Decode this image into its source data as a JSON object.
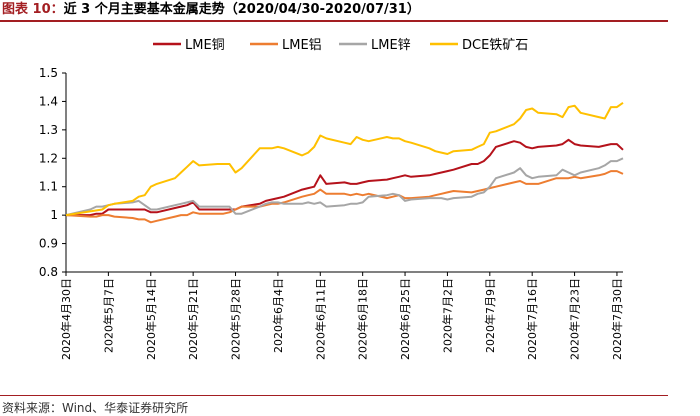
{
  "figure": {
    "label": "图表 10：",
    "title": "近 3 个月主要基本金属走势（2020/04/30-2020/07/31）",
    "source": "资料来源：Wind、华泰证券研究所"
  },
  "chart_data": {
    "type": "line",
    "ylim": [
      0.8,
      1.5
    ],
    "yticks": [
      "0.8",
      "0.9",
      "1",
      "1.1",
      "1.2",
      "1.3",
      "1.4",
      "1.5"
    ],
    "x_start": "2020-04-30",
    "x_end": "2020-07-31",
    "xtick_labels": [
      "2020年4月30日",
      "2020年5月7日",
      "2020年5月14日",
      "2020年5月21日",
      "2020年5月28日",
      "2020年6月4日",
      "2020年6月11日",
      "2020年6月18日",
      "2020年6月25日",
      "2020年7月2日",
      "2020年7月9日",
      "2020年7月16日",
      "2020年7月23日",
      "2020年7月30日"
    ],
    "legend_position": "top-center",
    "grid": false,
    "series": [
      {
        "name": "LME铜",
        "color": "#b5121b",
        "points": [
          [
            "2020-04-30",
            1.0
          ],
          [
            "2020-05-04",
            1.0
          ],
          [
            "2020-05-05",
            1.005
          ],
          [
            "2020-05-06",
            1.005
          ],
          [
            "2020-05-07",
            1.02
          ],
          [
            "2020-05-08",
            1.02
          ],
          [
            "2020-05-11",
            1.02
          ],
          [
            "2020-05-12",
            1.02
          ],
          [
            "2020-05-13",
            1.02
          ],
          [
            "2020-05-14",
            1.01
          ],
          [
            "2020-05-15",
            1.01
          ],
          [
            "2020-05-18",
            1.025
          ],
          [
            "2020-05-19",
            1.03
          ],
          [
            "2020-05-20",
            1.035
          ],
          [
            "2020-05-21",
            1.045
          ],
          [
            "2020-05-22",
            1.02
          ],
          [
            "2020-05-26",
            1.02
          ],
          [
            "2020-05-27",
            1.02
          ],
          [
            "2020-05-28",
            1.02
          ],
          [
            "2020-05-29",
            1.03
          ],
          [
            "2020-06-01",
            1.04
          ],
          [
            "2020-06-02",
            1.05
          ],
          [
            "2020-06-03",
            1.055
          ],
          [
            "2020-06-04",
            1.06
          ],
          [
            "2020-06-05",
            1.065
          ],
          [
            "2020-06-08",
            1.09
          ],
          [
            "2020-06-09",
            1.095
          ],
          [
            "2020-06-10",
            1.1
          ],
          [
            "2020-06-11",
            1.14
          ],
          [
            "2020-06-12",
            1.11
          ],
          [
            "2020-06-15",
            1.115
          ],
          [
            "2020-06-16",
            1.11
          ],
          [
            "2020-06-17",
            1.11
          ],
          [
            "2020-06-18",
            1.115
          ],
          [
            "2020-06-19",
            1.12
          ],
          [
            "2020-06-22",
            1.125
          ],
          [
            "2020-06-23",
            1.13
          ],
          [
            "2020-06-24",
            1.135
          ],
          [
            "2020-06-25",
            1.14
          ],
          [
            "2020-06-26",
            1.135
          ],
          [
            "2020-06-29",
            1.14
          ],
          [
            "2020-06-30",
            1.145
          ],
          [
            "2020-07-01",
            1.15
          ],
          [
            "2020-07-02",
            1.155
          ],
          [
            "2020-07-03",
            1.16
          ],
          [
            "2020-07-06",
            1.18
          ],
          [
            "2020-07-07",
            1.18
          ],
          [
            "2020-07-08",
            1.19
          ],
          [
            "2020-07-09",
            1.21
          ],
          [
            "2020-07-10",
            1.24
          ],
          [
            "2020-07-13",
            1.26
          ],
          [
            "2020-07-14",
            1.255
          ],
          [
            "2020-07-15",
            1.24
          ],
          [
            "2020-07-16",
            1.235
          ],
          [
            "2020-07-17",
            1.24
          ],
          [
            "2020-07-20",
            1.245
          ],
          [
            "2020-07-21",
            1.25
          ],
          [
            "2020-07-22",
            1.265
          ],
          [
            "2020-07-23",
            1.25
          ],
          [
            "2020-07-24",
            1.245
          ],
          [
            "2020-07-27",
            1.24
          ],
          [
            "2020-07-28",
            1.245
          ],
          [
            "2020-07-29",
            1.25
          ],
          [
            "2020-07-30",
            1.25
          ],
          [
            "2020-07-31",
            1.23
          ]
        ]
      },
      {
        "name": "LME铝",
        "color": "#ed7d31",
        "points": [
          [
            "2020-04-30",
            1.0
          ],
          [
            "2020-05-04",
            0.995
          ],
          [
            "2020-05-05",
            0.995
          ],
          [
            "2020-05-06",
            1.0
          ],
          [
            "2020-05-07",
            1.0
          ],
          [
            "2020-05-08",
            0.995
          ],
          [
            "2020-05-11",
            0.99
          ],
          [
            "2020-05-12",
            0.985
          ],
          [
            "2020-05-13",
            0.985
          ],
          [
            "2020-05-14",
            0.975
          ],
          [
            "2020-05-15",
            0.98
          ],
          [
            "2020-05-18",
            0.995
          ],
          [
            "2020-05-19",
            1.0
          ],
          [
            "2020-05-20",
            1.0
          ],
          [
            "2020-05-21",
            1.01
          ],
          [
            "2020-05-22",
            1.005
          ],
          [
            "2020-05-26",
            1.005
          ],
          [
            "2020-05-27",
            1.01
          ],
          [
            "2020-05-28",
            1.02
          ],
          [
            "2020-05-29",
            1.03
          ],
          [
            "2020-06-01",
            1.03
          ],
          [
            "2020-06-02",
            1.035
          ],
          [
            "2020-06-03",
            1.04
          ],
          [
            "2020-06-04",
            1.04
          ],
          [
            "2020-06-05",
            1.045
          ],
          [
            "2020-06-08",
            1.065
          ],
          [
            "2020-06-09",
            1.07
          ],
          [
            "2020-06-10",
            1.075
          ],
          [
            "2020-06-11",
            1.09
          ],
          [
            "2020-06-12",
            1.075
          ],
          [
            "2020-06-15",
            1.075
          ],
          [
            "2020-06-16",
            1.07
          ],
          [
            "2020-06-17",
            1.075
          ],
          [
            "2020-06-18",
            1.07
          ],
          [
            "2020-06-19",
            1.075
          ],
          [
            "2020-06-22",
            1.06
          ],
          [
            "2020-06-23",
            1.065
          ],
          [
            "2020-06-24",
            1.07
          ],
          [
            "2020-06-25",
            1.06
          ],
          [
            "2020-06-26",
            1.06
          ],
          [
            "2020-06-29",
            1.065
          ],
          [
            "2020-06-30",
            1.07
          ],
          [
            "2020-07-01",
            1.075
          ],
          [
            "2020-07-02",
            1.08
          ],
          [
            "2020-07-03",
            1.085
          ],
          [
            "2020-07-06",
            1.08
          ],
          [
            "2020-07-07",
            1.085
          ],
          [
            "2020-07-08",
            1.09
          ],
          [
            "2020-07-09",
            1.095
          ],
          [
            "2020-07-10",
            1.1
          ],
          [
            "2020-07-13",
            1.115
          ],
          [
            "2020-07-14",
            1.12
          ],
          [
            "2020-07-15",
            1.11
          ],
          [
            "2020-07-16",
            1.11
          ],
          [
            "2020-07-17",
            1.11
          ],
          [
            "2020-07-20",
            1.13
          ],
          [
            "2020-07-21",
            1.13
          ],
          [
            "2020-07-22",
            1.13
          ],
          [
            "2020-07-23",
            1.135
          ],
          [
            "2020-07-24",
            1.13
          ],
          [
            "2020-07-27",
            1.14
          ],
          [
            "2020-07-28",
            1.145
          ],
          [
            "2020-07-29",
            1.155
          ],
          [
            "2020-07-30",
            1.155
          ],
          [
            "2020-07-31",
            1.145
          ]
        ]
      },
      {
        "name": "LME锌",
        "color": "#a6a6a6",
        "points": [
          [
            "2020-04-30",
            1.0
          ],
          [
            "2020-05-04",
            1.02
          ],
          [
            "2020-05-05",
            1.03
          ],
          [
            "2020-05-06",
            1.03
          ],
          [
            "2020-05-07",
            1.035
          ],
          [
            "2020-05-08",
            1.04
          ],
          [
            "2020-05-11",
            1.045
          ],
          [
            "2020-05-12",
            1.05
          ],
          [
            "2020-05-13",
            1.035
          ],
          [
            "2020-05-14",
            1.02
          ],
          [
            "2020-05-15",
            1.02
          ],
          [
            "2020-05-18",
            1.035
          ],
          [
            "2020-05-19",
            1.04
          ],
          [
            "2020-05-20",
            1.045
          ],
          [
            "2020-05-21",
            1.05
          ],
          [
            "2020-05-22",
            1.03
          ],
          [
            "2020-05-26",
            1.03
          ],
          [
            "2020-05-27",
            1.03
          ],
          [
            "2020-05-28",
            1.005
          ],
          [
            "2020-05-29",
            1.005
          ],
          [
            "2020-06-01",
            1.03
          ],
          [
            "2020-06-02",
            1.04
          ],
          [
            "2020-06-03",
            1.045
          ],
          [
            "2020-06-04",
            1.045
          ],
          [
            "2020-06-05",
            1.04
          ],
          [
            "2020-06-08",
            1.04
          ],
          [
            "2020-06-09",
            1.045
          ],
          [
            "2020-06-10",
            1.04
          ],
          [
            "2020-06-11",
            1.045
          ],
          [
            "2020-06-12",
            1.03
          ],
          [
            "2020-06-15",
            1.035
          ],
          [
            "2020-06-16",
            1.04
          ],
          [
            "2020-06-17",
            1.04
          ],
          [
            "2020-06-18",
            1.045
          ],
          [
            "2020-06-19",
            1.065
          ],
          [
            "2020-06-22",
            1.07
          ],
          [
            "2020-06-23",
            1.075
          ],
          [
            "2020-06-24",
            1.07
          ],
          [
            "2020-06-25",
            1.05
          ],
          [
            "2020-06-26",
            1.055
          ],
          [
            "2020-06-29",
            1.06
          ],
          [
            "2020-06-30",
            1.06
          ],
          [
            "2020-07-01",
            1.06
          ],
          [
            "2020-07-02",
            1.055
          ],
          [
            "2020-07-03",
            1.06
          ],
          [
            "2020-07-06",
            1.065
          ],
          [
            "2020-07-07",
            1.075
          ],
          [
            "2020-07-08",
            1.08
          ],
          [
            "2020-07-09",
            1.1
          ],
          [
            "2020-07-10",
            1.13
          ],
          [
            "2020-07-13",
            1.15
          ],
          [
            "2020-07-14",
            1.165
          ],
          [
            "2020-07-15",
            1.14
          ],
          [
            "2020-07-16",
            1.13
          ],
          [
            "2020-07-17",
            1.135
          ],
          [
            "2020-07-20",
            1.14
          ],
          [
            "2020-07-21",
            1.16
          ],
          [
            "2020-07-22",
            1.15
          ],
          [
            "2020-07-23",
            1.14
          ],
          [
            "2020-07-24",
            1.15
          ],
          [
            "2020-07-27",
            1.165
          ],
          [
            "2020-07-28",
            1.175
          ],
          [
            "2020-07-29",
            1.19
          ],
          [
            "2020-07-30",
            1.19
          ],
          [
            "2020-07-31",
            1.2
          ]
        ]
      },
      {
        "name": "DCE铁矿石",
        "color": "#ffc000",
        "points": [
          [
            "2020-04-30",
            1.0
          ],
          [
            "2020-05-06",
            1.02
          ],
          [
            "2020-05-07",
            1.035
          ],
          [
            "2020-05-08",
            1.04
          ],
          [
            "2020-05-11",
            1.05
          ],
          [
            "2020-05-12",
            1.065
          ],
          [
            "2020-05-13",
            1.07
          ],
          [
            "2020-05-14",
            1.1
          ],
          [
            "2020-05-15",
            1.11
          ],
          [
            "2020-05-18",
            1.13
          ],
          [
            "2020-05-19",
            1.15
          ],
          [
            "2020-05-20",
            1.17
          ],
          [
            "2020-05-21",
            1.19
          ],
          [
            "2020-05-22",
            1.175
          ],
          [
            "2020-05-25",
            1.18
          ],
          [
            "2020-05-26",
            1.18
          ],
          [
            "2020-05-27",
            1.18
          ],
          [
            "2020-05-28",
            1.15
          ],
          [
            "2020-05-29",
            1.165
          ],
          [
            "2020-06-01",
            1.235
          ],
          [
            "2020-06-02",
            1.235
          ],
          [
            "2020-06-03",
            1.235
          ],
          [
            "2020-06-04",
            1.24
          ],
          [
            "2020-06-05",
            1.235
          ],
          [
            "2020-06-08",
            1.21
          ],
          [
            "2020-06-09",
            1.22
          ],
          [
            "2020-06-10",
            1.24
          ],
          [
            "2020-06-11",
            1.28
          ],
          [
            "2020-06-12",
            1.27
          ],
          [
            "2020-06-15",
            1.255
          ],
          [
            "2020-06-16",
            1.25
          ],
          [
            "2020-06-17",
            1.275
          ],
          [
            "2020-06-18",
            1.265
          ],
          [
            "2020-06-19",
            1.26
          ],
          [
            "2020-06-22",
            1.275
          ],
          [
            "2020-06-23",
            1.27
          ],
          [
            "2020-06-24",
            1.27
          ],
          [
            "2020-06-25",
            1.26
          ],
          [
            "2020-06-26",
            1.255
          ],
          [
            "2020-06-29",
            1.235
          ],
          [
            "2020-06-30",
            1.225
          ],
          [
            "2020-07-01",
            1.22
          ],
          [
            "2020-07-02",
            1.215
          ],
          [
            "2020-07-03",
            1.225
          ],
          [
            "2020-07-06",
            1.23
          ],
          [
            "2020-07-07",
            1.24
          ],
          [
            "2020-07-08",
            1.25
          ],
          [
            "2020-07-09",
            1.29
          ],
          [
            "2020-07-10",
            1.295
          ],
          [
            "2020-07-13",
            1.32
          ],
          [
            "2020-07-14",
            1.34
          ],
          [
            "2020-07-15",
            1.37
          ],
          [
            "2020-07-16",
            1.375
          ],
          [
            "2020-07-17",
            1.36
          ],
          [
            "2020-07-20",
            1.355
          ],
          [
            "2020-07-21",
            1.345
          ],
          [
            "2020-07-22",
            1.38
          ],
          [
            "2020-07-23",
            1.385
          ],
          [
            "2020-07-24",
            1.36
          ],
          [
            "2020-07-27",
            1.345
          ],
          [
            "2020-07-28",
            1.34
          ],
          [
            "2020-07-29",
            1.38
          ],
          [
            "2020-07-30",
            1.38
          ],
          [
            "2020-07-31",
            1.395
          ]
        ]
      }
    ]
  }
}
